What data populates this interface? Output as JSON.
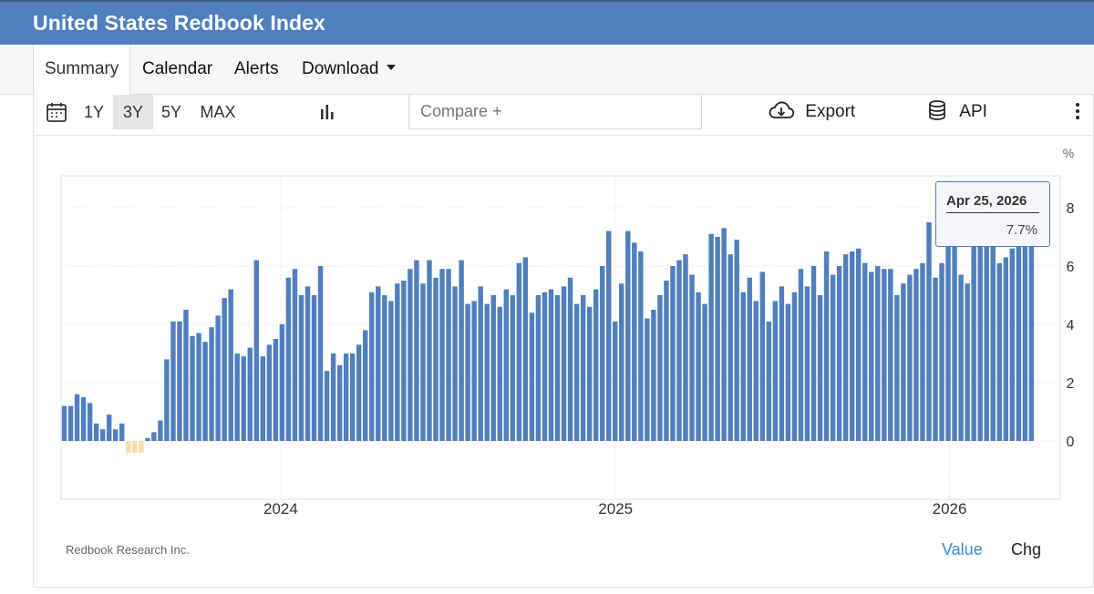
{
  "header": {
    "title": "United States Redbook Index"
  },
  "tabs": [
    {
      "label": "Summary",
      "active": true
    },
    {
      "label": "Calendar",
      "active": false
    },
    {
      "label": "Alerts",
      "active": false
    },
    {
      "label": "Download",
      "active": false
    }
  ],
  "toolbar": {
    "ranges": [
      "1Y",
      "3Y",
      "5Y",
      "MAX"
    ],
    "selected_range": "3Y",
    "compare_placeholder": "Compare +",
    "export_label": "Export",
    "api_label": "API"
  },
  "icons": {
    "calendar": "calendar-icon",
    "chart_type": "bar-chart-icon",
    "export": "cloud-download-icon",
    "api": "database-icon",
    "more": "kebab-menu-icon"
  },
  "tooltip": {
    "date": "Apr 25, 2026",
    "value": "7.7%"
  },
  "footer": {
    "source": "Redbook Research Inc.",
    "value_label": "Value",
    "chg_label": "Chg"
  },
  "colors": {
    "header": "#4f7fbf",
    "positive_bar": "#4f7fbf",
    "negative_bar": "#f8dcb2",
    "link": "#3a8ad8"
  },
  "chart_data": {
    "type": "bar",
    "unit_label": "%",
    "x_start": "2023-05-06",
    "x_end": "2026-04-25",
    "x_ticks": [
      "2024",
      "2025",
      "2026"
    ],
    "y_ticks": [
      "0",
      "2",
      "4",
      "6",
      "8"
    ],
    "ylim": [
      -2,
      9
    ],
    "grid": true,
    "values": [
      1.2,
      1.2,
      1.6,
      1.5,
      1.3,
      0.6,
      0.4,
      0.9,
      0.4,
      0.6,
      -0.4,
      -0.4,
      -0.4,
      0.1,
      0.3,
      0.7,
      2.8,
      4.1,
      4.1,
      4.5,
      3.6,
      3.7,
      3.4,
      3.9,
      4.3,
      4.9,
      5.2,
      3.0,
      2.9,
      3.2,
      6.2,
      2.9,
      3.3,
      3.5,
      4.0,
      5.6,
      5.9,
      5.0,
      5.3,
      5.0,
      6.0,
      2.4,
      3.0,
      2.6,
      3.0,
      3.0,
      3.3,
      3.8,
      5.1,
      5.3,
      5.0,
      4.8,
      5.4,
      5.5,
      5.9,
      6.2,
      5.4,
      6.2,
      5.6,
      5.9,
      5.9,
      5.3,
      6.2,
      4.7,
      4.8,
      5.3,
      4.7,
      5.0,
      4.6,
      5.2,
      5.0,
      6.1,
      6.3,
      4.4,
      5.0,
      5.1,
      5.2,
      5.0,
      5.3,
      5.6,
      4.7,
      5.0,
      4.6,
      5.2,
      6.0,
      7.2,
      4.1,
      5.4,
      7.2,
      6.8,
      6.5,
      4.2,
      4.5,
      5.0,
      5.5,
      6.0,
      6.2,
      6.4,
      5.7,
      5.1,
      4.7,
      7.1,
      7.0,
      7.3,
      6.4,
      6.9,
      5.1,
      5.6,
      4.8,
      5.8,
      4.1,
      4.8,
      5.3,
      4.7,
      5.1,
      5.9,
      5.3,
      6.0,
      5.0,
      6.5,
      5.7,
      6.0,
      6.4,
      6.5,
      6.6,
      6.1,
      5.8,
      6.0,
      5.9,
      5.9,
      5.0,
      5.4,
      5.7,
      5.9,
      6.1,
      7.5,
      5.6,
      6.1,
      6.8,
      7.1,
      5.7,
      5.4,
      7.2,
      7.0,
      7.3,
      6.8,
      6.1,
      6.3,
      6.6,
      7.0,
      7.5,
      7.7
    ]
  }
}
